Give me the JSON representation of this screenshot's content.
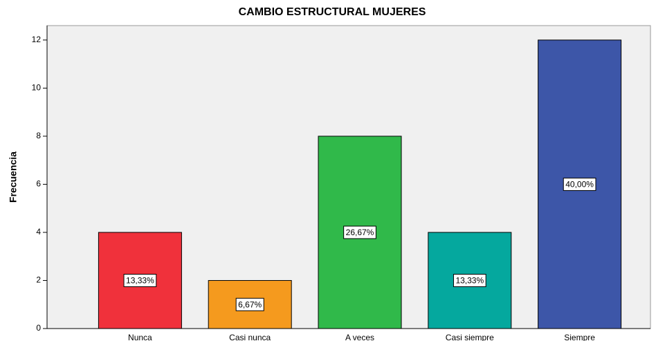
{
  "chart_data": {
    "type": "bar",
    "title": "CAMBIO ESTRUCTURAL MUJERES",
    "y_label": "Frecuencia",
    "categories": [
      "Nunca",
      "Casi nunca",
      "A veces",
      "Casi siempre",
      "Siempre"
    ],
    "values": [
      4,
      2,
      8,
      4,
      12
    ],
    "data_labels": [
      "13,33%",
      "6,67%",
      "26,67%",
      "13,33%",
      "40,00%"
    ],
    "colors": [
      "#f0313b",
      "#f59a1e",
      "#30b94a",
      "#05a89e",
      "#3d56a8"
    ],
    "ylim": [
      0,
      12.6
    ],
    "yticks": [
      0,
      2,
      4,
      6,
      8,
      10,
      12
    ],
    "grid": false
  }
}
